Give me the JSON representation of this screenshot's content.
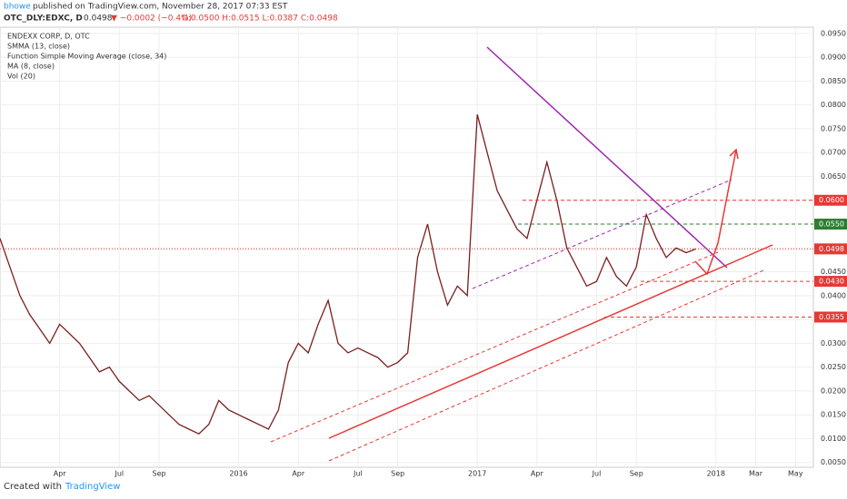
{
  "header": {
    "author": "bhowe",
    "published": "published on TradingView.com, November 28, 2017 07:33 EST",
    "symbol": "OTC_DLY:EDXC, D",
    "last": "0.0498",
    "change": "▼ −0.0002 (−0.4%)",
    "ohlc": "O:0.0500 H:0.0515 L:0.0387 C:0.0498"
  },
  "chart_data": {
    "type": "line",
    "legend": [
      "ENDEXX CORP, D, OTC",
      "SMMA (13, close)",
      "Function Simple Moving Average (close, 34)",
      "MA (8, close)",
      "Vol (20)"
    ],
    "color": "#7a1f1f",
    "x": [
      0,
      0.5,
      1,
      1.5,
      2,
      2.5,
      3,
      3.5,
      4,
      4.5,
      5,
      5.5,
      6,
      6.5,
      7,
      7.5,
      8,
      8.5,
      9,
      9.5,
      10,
      10.5,
      11,
      11.5,
      12,
      12.5,
      13,
      13.5,
      14,
      14.5,
      15,
      15.5,
      16,
      16.5,
      17,
      17.5,
      18,
      18.5,
      19,
      19.5,
      20,
      20.5,
      21,
      21.5,
      22,
      22.5,
      23,
      23.5,
      24,
      24.5,
      25,
      25.5,
      26,
      26.5,
      27,
      27.5,
      28,
      28.5,
      29,
      29.5,
      30,
      30.5,
      31,
      31.5,
      32,
      32.5,
      33,
      33.5,
      34,
      34.5,
      35
    ],
    "values": [
      0.052,
      0.046,
      0.04,
      0.036,
      0.033,
      0.03,
      0.034,
      0.032,
      0.03,
      0.027,
      0.024,
      0.025,
      0.022,
      0.02,
      0.018,
      0.019,
      0.017,
      0.015,
      0.013,
      0.012,
      0.011,
      0.013,
      0.018,
      0.016,
      0.015,
      0.014,
      0.013,
      0.012,
      0.016,
      0.026,
      0.03,
      0.028,
      0.034,
      0.039,
      0.03,
      0.028,
      0.029,
      0.028,
      0.027,
      0.025,
      0.026,
      0.028,
      0.048,
      0.055,
      0.045,
      0.038,
      0.042,
      0.04,
      0.078,
      0.07,
      0.062,
      0.058,
      0.054,
      0.052,
      0.06,
      0.068,
      0.06,
      0.05,
      0.046,
      0.042,
      0.043,
      0.048,
      0.044,
      0.042,
      0.046,
      0.057,
      0.052,
      0.048,
      0.05,
      0.049,
      0.0498
    ],
    "xlim": [
      0,
      40.9
    ],
    "xticks": [
      {
        "value": 3,
        "label": "Apr"
      },
      {
        "value": 6,
        "label": "Jul"
      },
      {
        "value": 8,
        "label": "Sep"
      },
      {
        "value": 12,
        "label": "2016"
      },
      {
        "value": 15,
        "label": "Apr"
      },
      {
        "value": 18,
        "label": "Jul"
      },
      {
        "value": 20,
        "label": "Sep"
      },
      {
        "value": 24,
        "label": "2017"
      },
      {
        "value": 27,
        "label": "Apr"
      },
      {
        "value": 30,
        "label": "Jul"
      },
      {
        "value": 32,
        "label": "Sep"
      },
      {
        "value": 36,
        "label": "2018"
      },
      {
        "value": 38,
        "label": "Mar"
      },
      {
        "value": 40,
        "label": "May"
      }
    ],
    "ylim": [
      0.004,
      0.0963
    ],
    "yticks": [
      {
        "value": 0.005,
        "label": "0.0050"
      },
      {
        "value": 0.01,
        "label": "0.0100"
      },
      {
        "value": 0.015,
        "label": "0.0150"
      },
      {
        "value": 0.02,
        "label": "0.0200"
      },
      {
        "value": 0.025,
        "label": "0.0250"
      },
      {
        "value": 0.03,
        "label": "0.0300"
      },
      {
        "value": 0.035,
        "label": "0.0350"
      },
      {
        "value": 0.04,
        "label": "0.0400"
      },
      {
        "value": 0.045,
        "label": "0.0450"
      },
      {
        "value": 0.05,
        "label": "0.0500"
      },
      {
        "value": 0.055,
        "label": "0.0550"
      },
      {
        "value": 0.06,
        "label": "0.0600"
      },
      {
        "value": 0.065,
        "label": "0.0650"
      },
      {
        "value": 0.07,
        "label": "0.0700"
      },
      {
        "value": 0.075,
        "label": "0.0750"
      },
      {
        "value": 0.08,
        "label": "0.0800"
      },
      {
        "value": 0.085,
        "label": "0.0850"
      },
      {
        "value": 0.09,
        "label": "0.0900"
      },
      {
        "value": 0.095,
        "label": "0.0950"
      }
    ],
    "grid": true,
    "levels": [
      {
        "value": 0.06,
        "label": "0.0600",
        "color": "#e53935"
      },
      {
        "value": 0.055,
        "label": "0.0550",
        "color": "#2e7d32"
      },
      {
        "value": 0.0498,
        "label": "0.0498",
        "color": "#e53935"
      },
      {
        "value": 0.043,
        "label": "0.0430",
        "color": "#e53935"
      },
      {
        "value": 0.0355,
        "label": "0.0355",
        "color": "#e53935"
      }
    ]
  },
  "footer": {
    "created": "Created with",
    "brand": "TradingView"
  }
}
